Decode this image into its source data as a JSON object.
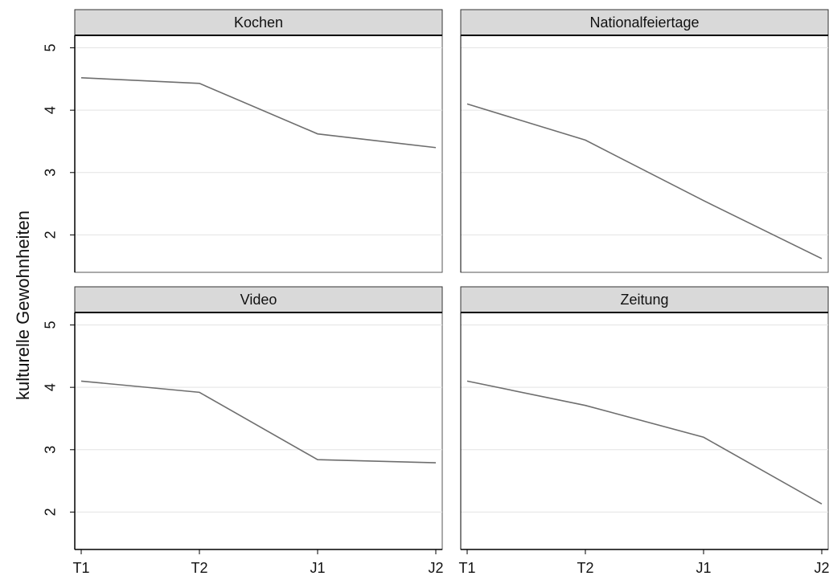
{
  "chart_data": {
    "type": "line",
    "ylabel": "kulturelle Gewohnheiten",
    "categories": [
      "T1",
      "T2",
      "J1",
      "J2"
    ],
    "ylim": [
      1.4,
      5.2
    ],
    "yticks": [
      2,
      3,
      4,
      5
    ],
    "grid": true,
    "color": "#6e6e6e",
    "panels": [
      {
        "title": "Kochen",
        "values": [
          4.52,
          4.43,
          3.62,
          3.4
        ]
      },
      {
        "title": "Nationalfeiertage",
        "values": [
          4.1,
          3.52,
          2.55,
          1.62
        ]
      },
      {
        "title": "Video",
        "values": [
          4.1,
          3.92,
          2.84,
          2.79
        ]
      },
      {
        "title": "Zeitung",
        "values": [
          4.1,
          3.71,
          3.2,
          2.13
        ]
      }
    ]
  }
}
